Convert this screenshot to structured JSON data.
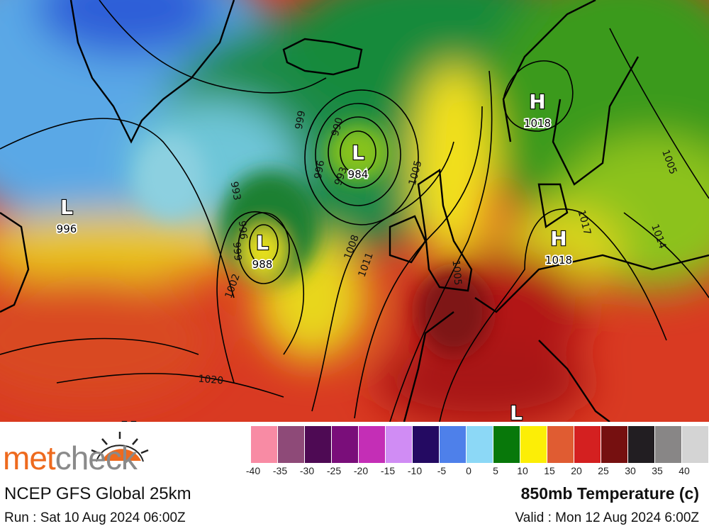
{
  "map": {
    "pressure_systems": [
      {
        "type": "H",
        "value": "1018"
      },
      {
        "type": "L",
        "value": "984"
      },
      {
        "type": "L",
        "value": "996"
      },
      {
        "type": "L",
        "value": "988"
      },
      {
        "type": "H",
        "value": "1018"
      },
      {
        "type": "H",
        "value": ""
      },
      {
        "type": "L",
        "value": ""
      }
    ],
    "isobar_labels": [
      "999",
      "990",
      "996",
      "993",
      "1005",
      "993",
      "996",
      "999",
      "1002",
      "1008",
      "1011",
      "1020",
      "1005",
      "1017",
      "1014",
      "1005"
    ]
  },
  "logo": {
    "part1": "met",
    "part2": "check"
  },
  "model": "NCEP GFS Global 25km",
  "run": "Run : Sat 10 Aug 2024 06:00Z",
  "title": "850mb Temperature (c)",
  "valid": "Valid : Mon 12 Aug 2024 6:00Z",
  "legend": {
    "ticks": [
      "-40",
      "-35",
      "-30",
      "-25",
      "-20",
      "-15",
      "-10",
      "-5",
      "0",
      "5",
      "10",
      "15",
      "20",
      "25",
      "30",
      "35",
      "40"
    ],
    "colors": [
      "#f88ba4",
      "#8e4a78",
      "#4e0a54",
      "#7a0e7a",
      "#c42eb6",
      "#d08cf4",
      "#240a62",
      "#4e80ea",
      "#8cd8f6",
      "#08780a",
      "#fcee06",
      "#e05c32",
      "#d42020",
      "#761010",
      "#221e22",
      "#888686",
      "#d4d4d4"
    ]
  }
}
